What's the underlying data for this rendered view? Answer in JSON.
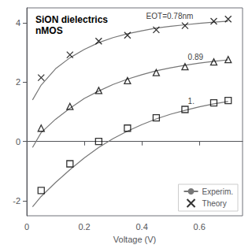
{
  "chart_data": {
    "type": "line",
    "title": "SiON dielectrics",
    "subtitle": "nMOS",
    "xlabel": "Voltage (V)",
    "xlim": [
      0,
      0.75
    ],
    "xticks": [
      0,
      0.2,
      0.4,
      0.6
    ],
    "ylim": [
      -2.5,
      4.5
    ],
    "yticks": [
      -2,
      0,
      2,
      4
    ],
    "grid": false,
    "legend": "lower right",
    "series": [
      {
        "name": "Experim.",
        "type": "line",
        "color": "#777777",
        "x": [
          0.02,
          0.05,
          0.1,
          0.15,
          0.2,
          0.25,
          0.3,
          0.35,
          0.4,
          0.45,
          0.5,
          0.55,
          0.6,
          0.65,
          0.7
        ],
        "values": [
          1.4,
          1.9,
          2.45,
          2.82,
          3.1,
          3.33,
          3.5,
          3.63,
          3.73,
          3.82,
          3.88,
          3.93,
          3.98,
          4.02,
          4.05
        ]
      },
      {
        "name": "Theory",
        "type": "scatter",
        "marker": "x",
        "color": "#000000",
        "x": [
          0.05,
          0.15,
          0.25,
          0.35,
          0.45,
          0.55,
          0.65,
          0.7
        ],
        "values": [
          2.15,
          2.92,
          3.38,
          3.58,
          3.76,
          3.9,
          4.05,
          4.12
        ]
      },
      {
        "name": "Experim.",
        "type": "line",
        "color": "#777777",
        "x": [
          0.02,
          0.05,
          0.1,
          0.15,
          0.2,
          0.25,
          0.3,
          0.35,
          0.4,
          0.45,
          0.5,
          0.55,
          0.6,
          0.65,
          0.7
        ],
        "values": [
          -0.2,
          0.3,
          0.75,
          1.12,
          1.45,
          1.7,
          1.92,
          2.1,
          2.25,
          2.38,
          2.48,
          2.57,
          2.64,
          2.7,
          2.75
        ]
      },
      {
        "name": "Theory",
        "type": "scatter",
        "marker": "triangle",
        "color": "#000000",
        "x": [
          0.05,
          0.15,
          0.25,
          0.35,
          0.45,
          0.55,
          0.65,
          0.7
        ],
        "values": [
          0.45,
          1.18,
          1.72,
          2.05,
          2.32,
          2.52,
          2.68,
          2.76
        ]
      },
      {
        "name": "Experim.",
        "type": "line",
        "color": "#777777",
        "x": [
          0.02,
          0.05,
          0.1,
          0.15,
          0.2,
          0.25,
          0.3,
          0.35,
          0.4,
          0.45,
          0.5,
          0.55,
          0.6,
          0.65,
          0.7
        ],
        "values": [
          -2.2,
          -1.85,
          -1.38,
          -0.95,
          -0.55,
          -0.2,
          0.1,
          0.35,
          0.57,
          0.76,
          0.92,
          1.05,
          1.17,
          1.27,
          1.35
        ]
      },
      {
        "name": "Theory",
        "type": "scatter",
        "marker": "square",
        "color": "#000000",
        "x": [
          0.05,
          0.15,
          0.25,
          0.35,
          0.45,
          0.55,
          0.65,
          0.7
        ],
        "values": [
          -1.65,
          -0.75,
          0.0,
          0.45,
          0.8,
          1.08,
          1.3,
          1.38
        ]
      }
    ],
    "annotations": [
      {
        "text": "EOT=0.78nm",
        "x": 0.415,
        "y": 4.08
      },
      {
        "text": "0.89",
        "x": 0.56,
        "y": 2.7
      },
      {
        "text": "1.",
        "x": 0.56,
        "y": 1.22
      }
    ]
  }
}
